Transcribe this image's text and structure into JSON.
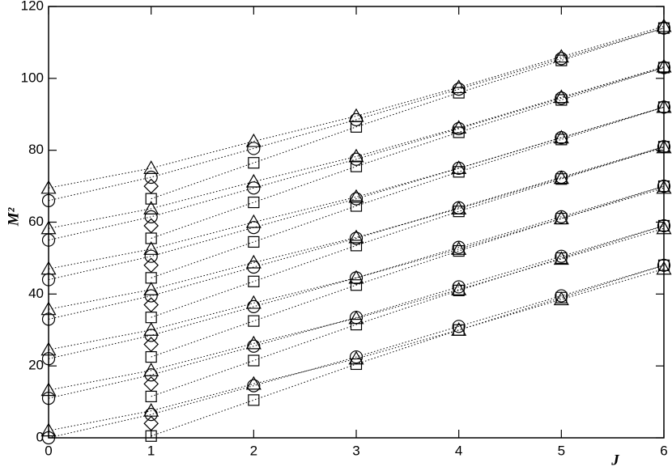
{
  "chart_data": {
    "type": "scatter",
    "xlabel": "J",
    "ylabel": "M²",
    "x": [
      0,
      1,
      2,
      3,
      4,
      5,
      6
    ],
    "xlim": [
      0,
      6
    ],
    "xticks": [
      0,
      1,
      2,
      3,
      4,
      5,
      6
    ],
    "ylim": [
      0,
      120
    ],
    "yticks": [
      0,
      20,
      40,
      60,
      80,
      100,
      120
    ],
    "color": "#000000",
    "line_style": "dotted",
    "series": [
      {
        "marker": "triangle",
        "line": true,
        "values": [
          69.5,
          75,
          82.5,
          89.5,
          97.5,
          106,
          114.5
        ]
      },
      {
        "marker": "triangle",
        "line": true,
        "values": [
          58.25,
          63.75,
          71.25,
          78.25,
          86.25,
          94.75,
          103.25
        ]
      },
      {
        "marker": "triangle",
        "line": true,
        "values": [
          47,
          52.5,
          60,
          67,
          75,
          83.5,
          92
        ]
      },
      {
        "marker": "triangle",
        "line": true,
        "values": [
          35.75,
          41.25,
          48.75,
          55.75,
          63.75,
          72.25,
          80.75
        ]
      },
      {
        "marker": "triangle",
        "line": true,
        "values": [
          24.5,
          30,
          37.5,
          44.5,
          52.5,
          61,
          69.5
        ]
      },
      {
        "marker": "triangle",
        "line": true,
        "values": [
          13.25,
          18.75,
          26.25,
          33.25,
          41.25,
          49.75,
          58.25
        ]
      },
      {
        "marker": "triangle",
        "line": true,
        "values": [
          2,
          7.5,
          15,
          22,
          30,
          38.5,
          47
        ]
      },
      {
        "marker": "circle",
        "line": true,
        "values": [
          66,
          72.5,
          80.5,
          88.5,
          97,
          105.5,
          114
        ]
      },
      {
        "marker": "circle",
        "line": true,
        "values": [
          55,
          61.5,
          69.5,
          77.5,
          86,
          94.5,
          103
        ]
      },
      {
        "marker": "circle",
        "line": true,
        "values": [
          44,
          50.5,
          58.5,
          66.5,
          75,
          83.5,
          92
        ]
      },
      {
        "marker": "circle",
        "line": true,
        "values": [
          33,
          39.5,
          47.5,
          55.5,
          64,
          72.5,
          81
        ]
      },
      {
        "marker": "circle",
        "line": true,
        "values": [
          22,
          28.5,
          36.5,
          44.5,
          53,
          61.5,
          70
        ]
      },
      {
        "marker": "circle",
        "line": true,
        "values": [
          11,
          17.5,
          25.5,
          33.5,
          42,
          50.5,
          59
        ]
      },
      {
        "marker": "circle",
        "line": true,
        "values": [
          0,
          6.5,
          14.5,
          22.5,
          31,
          39.5,
          48
        ]
      },
      {
        "marker": "square",
        "line": true,
        "values": [
          null,
          66.5,
          76.5,
          86.5,
          96,
          105,
          114
        ]
      },
      {
        "marker": "square",
        "line": true,
        "values": [
          null,
          55.5,
          65.5,
          75.5,
          85,
          94,
          103
        ]
      },
      {
        "marker": "square",
        "line": true,
        "values": [
          null,
          44.5,
          54.5,
          64.5,
          74,
          83,
          92
        ]
      },
      {
        "marker": "square",
        "line": true,
        "values": [
          null,
          33.5,
          43.5,
          53.5,
          63,
          72,
          81
        ]
      },
      {
        "marker": "square",
        "line": true,
        "values": [
          null,
          22.5,
          32.5,
          42.5,
          52,
          61,
          70
        ]
      },
      {
        "marker": "square",
        "line": true,
        "values": [
          null,
          11.5,
          21.5,
          31.5,
          41,
          50,
          59
        ]
      },
      {
        "marker": "square",
        "line": true,
        "values": [
          null,
          0.5,
          10.5,
          20.5,
          30,
          39,
          48
        ]
      },
      {
        "marker": "diamond",
        "line": false,
        "values": [
          null,
          70,
          null,
          null,
          null,
          null,
          null
        ]
      },
      {
        "marker": "diamond",
        "line": false,
        "values": [
          null,
          59,
          null,
          null,
          null,
          null,
          null
        ]
      },
      {
        "marker": "diamond",
        "line": false,
        "values": [
          null,
          48,
          null,
          null,
          null,
          null,
          null
        ]
      },
      {
        "marker": "diamond",
        "line": false,
        "values": [
          null,
          37,
          null,
          null,
          null,
          null,
          null
        ]
      },
      {
        "marker": "diamond",
        "line": false,
        "values": [
          null,
          26,
          null,
          null,
          null,
          null,
          null
        ]
      },
      {
        "marker": "diamond",
        "line": false,
        "values": [
          null,
          15,
          null,
          null,
          null,
          null,
          null
        ]
      },
      {
        "marker": "diamond",
        "line": false,
        "values": [
          null,
          4,
          null,
          null,
          null,
          null,
          null
        ]
      }
    ]
  }
}
